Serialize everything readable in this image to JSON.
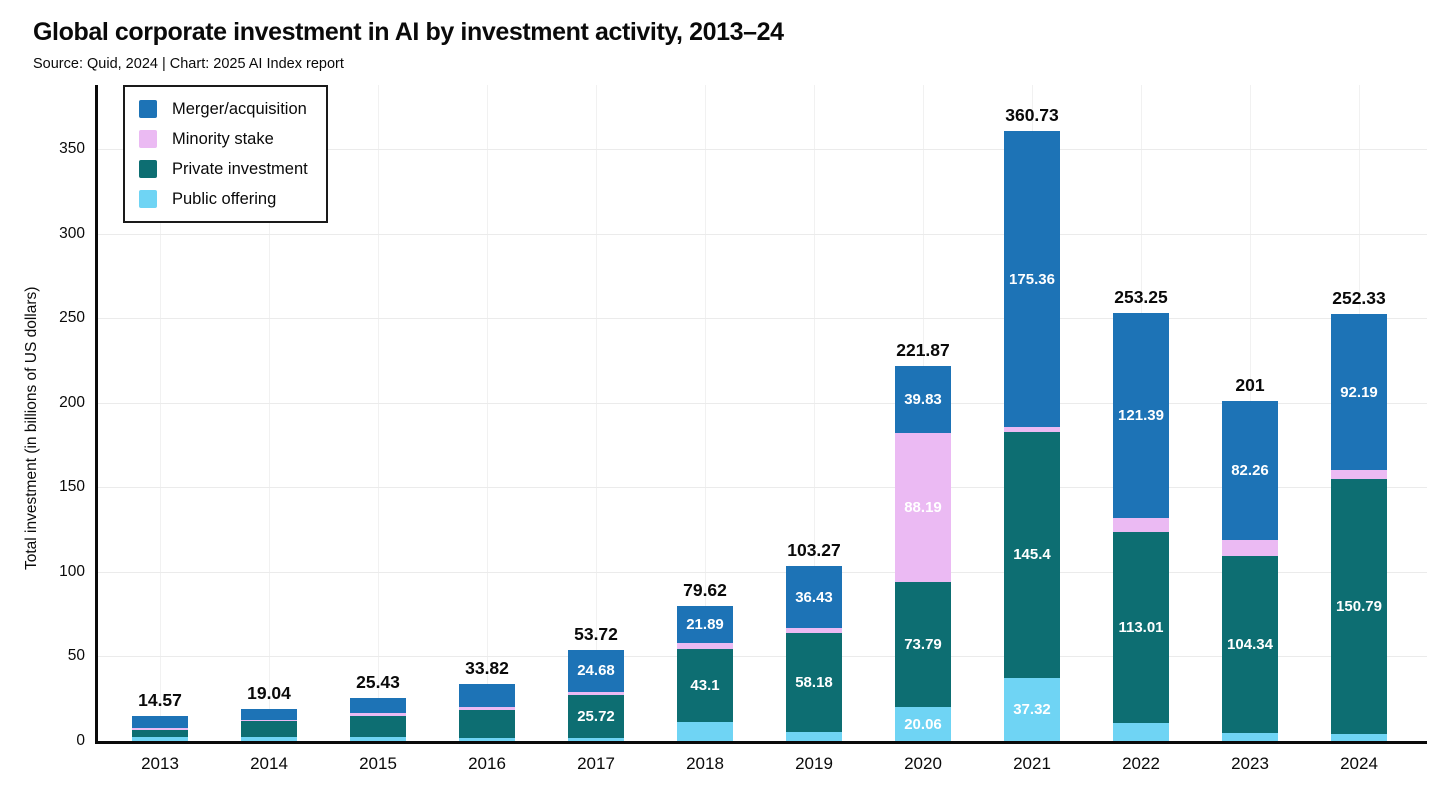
{
  "header": {
    "title": "Global corporate investment in AI by investment activity, 2013–24",
    "source_line": "Source: Quid, 2024 | Chart: 2025 AI Index report"
  },
  "colors": {
    "merger": "#1d73b6",
    "minority": "#ebbaf3",
    "private": "#0d6e72",
    "public": "#6fd4f4",
    "axis": "#0a0a0a",
    "grid_horizontal": "#ebebeb",
    "grid_vertical": "#f1f1f1",
    "background": "#ffffff"
  },
  "chart_data": {
    "type": "bar",
    "stacked": true,
    "title": "Global corporate investment in AI by investment activity, 2013–24",
    "xlabel": "",
    "ylabel": "Total investment (in billions of US dollars)",
    "y_ticks": [
      0,
      50,
      100,
      150,
      200,
      250,
      300,
      350
    ],
    "ylim": [
      0,
      388
    ],
    "grid": true,
    "legend_position": "top-left",
    "categories": [
      "2013",
      "2014",
      "2015",
      "2016",
      "2017",
      "2018",
      "2019",
      "2020",
      "2021",
      "2022",
      "2023",
      "2024"
    ],
    "series": [
      {
        "name": "Merger/acquisition",
        "key": "merger",
        "color": "#1d73b6",
        "values": [
          6.7,
          6.5,
          8.9,
          13.5,
          24.68,
          21.89,
          36.43,
          39.83,
          175.36,
          121.39,
          82.26,
          92.19
        ],
        "shown_labels": [
          null,
          null,
          null,
          null,
          "24.68",
          "21.89",
          "36.43",
          "39.83",
          "175.36",
          "121.39",
          "82.26",
          "92.19"
        ]
      },
      {
        "name": "Minority stake",
        "key": "minority",
        "color": "#ebbaf3",
        "values": [
          1.6,
          0.6,
          1.8,
          1.8,
          1.8,
          3.2,
          3.2,
          88.19,
          2.65,
          8.5,
          9.4,
          5.5
        ],
        "shown_labels": [
          null,
          null,
          null,
          null,
          null,
          null,
          null,
          "88.19",
          null,
          null,
          null,
          null
        ]
      },
      {
        "name": "Private investment",
        "key": "private",
        "color": "#0d6e72",
        "values": [
          4.0,
          9.4,
          12.2,
          16.5,
          25.72,
          43.1,
          58.18,
          73.79,
          145.4,
          113.01,
          104.34,
          150.79
        ],
        "shown_labels": [
          null,
          null,
          null,
          null,
          "25.72",
          "43.1",
          "58.18",
          "73.79",
          "145.4",
          "113.01",
          "104.34",
          "150.79"
        ]
      },
      {
        "name": "Public offering",
        "key": "public",
        "color": "#6fd4f4",
        "values": [
          2.27,
          2.54,
          2.53,
          2.02,
          1.52,
          11.43,
          5.46,
          20.06,
          37.32,
          10.35,
          5.0,
          3.85
        ],
        "shown_labels": [
          null,
          null,
          null,
          null,
          null,
          null,
          null,
          "20.06",
          "37.32",
          null,
          null,
          null
        ]
      }
    ],
    "totals": [
      "14.57",
      "19.04",
      "25.43",
      "33.82",
      "53.72",
      "79.62",
      "103.27",
      "221.87",
      "360.73",
      "253.25",
      "201",
      "252.33"
    ]
  }
}
